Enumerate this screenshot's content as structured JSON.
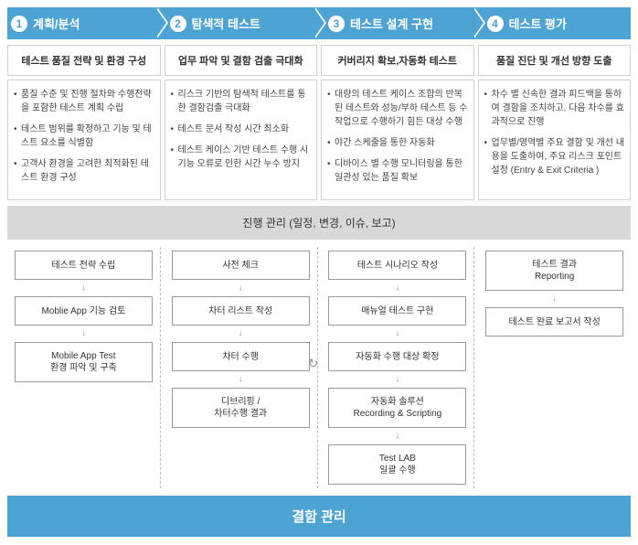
{
  "phases": [
    {
      "num": "1",
      "title": "계획/분석",
      "subtitle": "테스트 품질 전략 및 환경 구성",
      "bullets": [
        "품질 수준 및 진행 절차와 수행전략을 포함한 테스트 계획 수립",
        "테스트 범위를 확정하고 기능 및 테스트 요소를 식별함",
        "고객사 환경을 고려한 최적화된 테스트 환경 구성"
      ]
    },
    {
      "num": "2",
      "title": "탐색적 테스트",
      "subtitle": "업무 파악 및 결함 검출 극대화",
      "bullets": [
        "리스크 기반의 탐색적 테스트를 통한 결함검출 극대화",
        "테스트 문서 작성 시간 최소화",
        "테스트 케이스 기반 테스트 수행 시 기능 오류로 인한 시간 누수 방지"
      ]
    },
    {
      "num": "3",
      "title": "테스트 설계 구현",
      "subtitle": "커버리지 확보,자동화 테스트",
      "bullets": [
        "대량의 테스트 케이스 조합의 반복된 테스트와 성능/부하 테스트 등 수작업으로 수행하기 힘든 대상 수행",
        "야간 스케줄을 통한 자동화",
        "디바이스 별 수행 모니터링을 통한 일관성 있는 품질 확보"
      ]
    },
    {
      "num": "4",
      "title": "테스트 평가",
      "subtitle": "품질 진단 및 개선 방향 도출",
      "bullets": [
        "차수 별 신속한 결과 피드백을 통하여 결함을 조치하고, 다음 차수를 효과적으로 진행",
        "업무별/영역별 주요 결함 및 개선 내용을 도출하여, 주요 리스크 포인트 설정 (Entry & Exit Criteria )"
      ]
    }
  ],
  "progressLabel": "진행 관리 (일정, 변경, 이슈, 보고)",
  "flows": [
    [
      "테스트 전략 수립",
      "Moblie App 기능 검토",
      "Mobile App Test\n환경 파악 및 구축"
    ],
    [
      "사전 체크",
      "차터 리스트 작성",
      "차터 수행",
      "디브리핑 /\n차터수행 결과"
    ],
    [
      "테스트 시나리오 작성",
      "매뉴얼 테스트 구현",
      "자동화 수행 대상 확정",
      "자동화 솔루션\nRecording & Scripting",
      "Test LAB\n일괄 수행"
    ],
    [
      "테스트 결과\nReporting",
      "테스트 완료 보고서 작성"
    ]
  ],
  "defectLabel": "결함 관리",
  "colors": {
    "primary": "#4da3d4",
    "gray": "#d8d8d8"
  }
}
